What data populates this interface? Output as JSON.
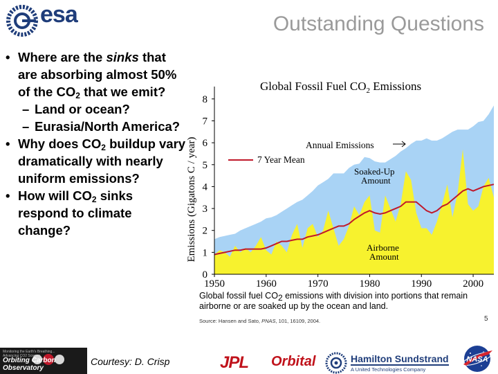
{
  "header": {
    "logo_text": "esa",
    "title": "Outstanding Questions"
  },
  "bullets": {
    "q1_pre": "Where are the ",
    "q1_em": "sinks",
    "q1_post1": " that are absorbing almost 50% of the CO",
    "q1_sub": "2",
    "q1_post2": " that we emit?",
    "q1_sub1": "Land or ocean?",
    "q1_sub2": "Eurasia/North America?",
    "dash": "–",
    "q2_pre": "Why does CO",
    "q2_sub": "2",
    "q2_post": " buildup vary dramatically with nearly uniform emissions?",
    "q3_pre": "How will CO",
    "q3_sub": "2",
    "q3_post": " sinks respond to climate change?"
  },
  "chart_data": {
    "type": "area",
    "title_pre": "Global Fossil Fuel CO",
    "title_sub": "2",
    "title_post": " Emissions",
    "ylabel": "Emissions (Gigatons C / year)",
    "xlabel": "",
    "xlim": [
      1950,
      2004
    ],
    "ylim": [
      0,
      8.5
    ],
    "xticks": [
      "1950",
      "1960",
      "1970",
      "1980",
      "1990",
      "2000"
    ],
    "xtick_values": [
      1950,
      1960,
      1970,
      1980,
      1990,
      2000
    ],
    "yticks": [
      "0",
      "1",
      "2",
      "3",
      "4",
      "5",
      "6",
      "7",
      "8"
    ],
    "ytick_values": [
      0,
      1,
      2,
      3,
      4,
      5,
      6,
      7,
      8
    ],
    "x": [
      1950,
      1951,
      1952,
      1953,
      1954,
      1955,
      1956,
      1957,
      1958,
      1959,
      1960,
      1961,
      1962,
      1963,
      1964,
      1965,
      1966,
      1967,
      1968,
      1969,
      1970,
      1971,
      1972,
      1973,
      1974,
      1975,
      1976,
      1977,
      1978,
      1979,
      1980,
      1981,
      1982,
      1983,
      1984,
      1985,
      1986,
      1987,
      1988,
      1989,
      1990,
      1991,
      1992,
      1993,
      1994,
      1995,
      1996,
      1997,
      1998,
      1999,
      2000,
      2001,
      2002,
      2003,
      2004
    ],
    "series": [
      {
        "name": "Annual Emissions",
        "color": "#a9d3f5",
        "values": [
          1.6,
          1.7,
          1.75,
          1.8,
          1.85,
          2.0,
          2.1,
          2.2,
          2.3,
          2.4,
          2.55,
          2.6,
          2.7,
          2.85,
          3.0,
          3.15,
          3.3,
          3.4,
          3.6,
          3.8,
          4.05,
          4.2,
          4.35,
          4.6,
          4.6,
          4.6,
          4.85,
          5.0,
          5.05,
          5.35,
          5.3,
          5.15,
          5.1,
          5.1,
          5.25,
          5.4,
          5.6,
          5.75,
          5.95,
          6.1,
          6.1,
          6.2,
          6.1,
          6.1,
          6.2,
          6.35,
          6.5,
          6.6,
          6.6,
          6.6,
          6.75,
          6.95,
          7.0,
          7.3,
          7.7
        ]
      },
      {
        "name": "Airborne Amount",
        "color": "#f7f22e",
        "values": [
          0.9,
          1.1,
          1.0,
          0.8,
          1.3,
          1.0,
          1.2,
          1.0,
          1.3,
          1.7,
          1.1,
          0.9,
          1.5,
          1.3,
          1.0,
          1.8,
          2.3,
          1.2,
          2.1,
          2.3,
          1.7,
          2.0,
          2.9,
          2.1,
          1.3,
          1.6,
          2.2,
          3.1,
          2.7,
          3.3,
          3.6,
          2.0,
          1.9,
          3.6,
          3.0,
          2.4,
          3.2,
          4.7,
          4.3,
          2.8,
          2.1,
          2.1,
          1.8,
          2.4,
          3.2,
          4.1,
          2.6,
          3.7,
          5.7,
          3.2,
          2.9,
          3.1,
          4.0,
          4.4,
          3.5
        ]
      },
      {
        "name": "7 Year Mean",
        "color": "#c0182a",
        "values": [
          0.9,
          0.95,
          1.0,
          1.05,
          1.1,
          1.1,
          1.15,
          1.15,
          1.15,
          1.15,
          1.2,
          1.3,
          1.4,
          1.5,
          1.5,
          1.55,
          1.6,
          1.6,
          1.7,
          1.75,
          1.8,
          1.9,
          2.0,
          2.1,
          2.2,
          2.2,
          2.3,
          2.5,
          2.65,
          2.8,
          2.9,
          2.8,
          2.75,
          2.8,
          2.9,
          3.0,
          3.1,
          3.3,
          3.3,
          3.3,
          3.1,
          2.9,
          2.8,
          2.9,
          3.1,
          3.2,
          3.4,
          3.6,
          3.8,
          3.9,
          3.8,
          3.9,
          4.0,
          4.05,
          4.1
        ]
      }
    ],
    "annotations": {
      "annual": "Annual Emissions",
      "mean": "7 Year Mean",
      "soaked_1": "Soaked-Up",
      "soaked_2": "Amount",
      "airborne_1": "Airborne",
      "airborne_2": "Amount"
    }
  },
  "caption": {
    "pre": "Global fossil fuel CO",
    "sub": "2",
    "post": " emissions with division into portions that remain airborne or are soaked up by the ocean and land.",
    "source_pre": "Source: Hansen and Sato, ",
    "source_journal": "PNAS",
    "source_post": ", 101, 16109, 2004.",
    "page": "5"
  },
  "footer": {
    "courtesy": "Courtesy: D. Crisp",
    "oco_title": "Orbiting Carbon Observatory",
    "oco_tagline": "Monitoring the Earth's Breathing... Advancing CO2 Science",
    "jpl": "JPL",
    "orbital": "Orbital",
    "hs_name": "Hamilton Sundstrand",
    "hs_sub": "A United Technologies Company",
    "nasa": "NASA"
  },
  "colors": {
    "esa_blue": "#1f3d7a",
    "title_gray": "#9a9a9a",
    "brand_red": "#c0121b"
  }
}
